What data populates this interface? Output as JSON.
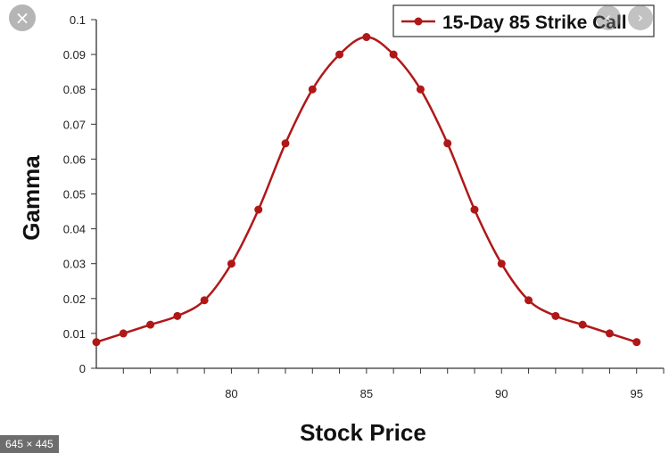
{
  "overlay": {
    "close_icon": "×",
    "prev_icon": "‹",
    "next_icon": "›",
    "size_badge": "645 × 445"
  },
  "chart_data": {
    "type": "line",
    "title": "",
    "xlabel": "Stock Price",
    "ylabel": "Gamma",
    "xlim": [
      75,
      96
    ],
    "ylim": [
      0,
      0.1
    ],
    "x_ticks": [
      "80",
      "85",
      "90",
      "95"
    ],
    "y_ticks": [
      "0",
      "0.01",
      "0.02",
      "0.03",
      "0.04",
      "0.05",
      "0.06",
      "0.07",
      "0.08",
      "0.09",
      "0.1"
    ],
    "legend": {
      "position": "top-right"
    },
    "grid": false,
    "series": [
      {
        "name": "15-Day 85 Strike Call",
        "color": "#b01818",
        "x": [
          75,
          76,
          77,
          78,
          79,
          80,
          81,
          82,
          83,
          84,
          85,
          86,
          87,
          88,
          89,
          90,
          91,
          92,
          93,
          94,
          95
        ],
        "y": [
          0.0075,
          0.01,
          0.0125,
          0.015,
          0.0195,
          0.03,
          0.0455,
          0.0645,
          0.08,
          0.09,
          0.095,
          0.09,
          0.08,
          0.0645,
          0.0455,
          0.03,
          0.0195,
          0.015,
          0.0125,
          0.01,
          0.0075
        ]
      }
    ]
  }
}
